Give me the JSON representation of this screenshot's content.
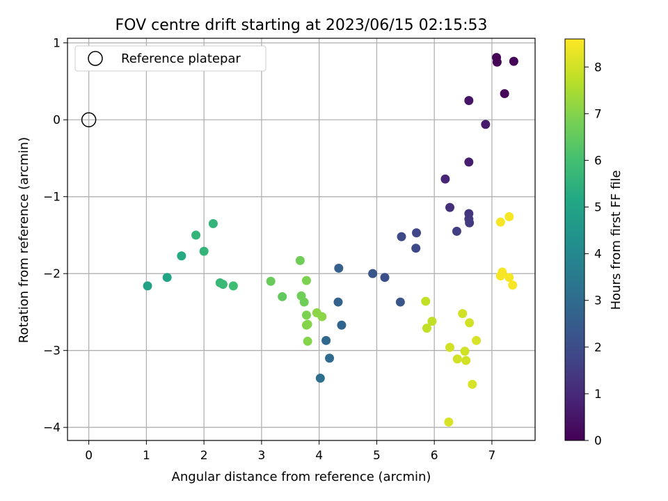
{
  "chart_data": {
    "type": "scatter",
    "title": "FOV centre drift starting at 2023/06/15 02:15:53",
    "xlabel": "Angular distance from reference (arcmin)",
    "ylabel": "Rotation from reference (arcmin)",
    "xlim": [
      -0.37,
      7.75
    ],
    "ylim": [
      -4.17,
      1.06
    ],
    "xticks": [
      "0",
      "1",
      "2",
      "3",
      "4",
      "5",
      "6",
      "7"
    ],
    "yticks": [
      "1",
      "0",
      "−1",
      "−2",
      "−3",
      "−4"
    ],
    "grid": true,
    "legend": {
      "position": "top-left",
      "entries": [
        "Reference platepar"
      ]
    },
    "reference": {
      "x": 0,
      "y": 0
    },
    "colorbar": {
      "label": "Hours from first FF file",
      "range": [
        0,
        8.6
      ],
      "ticks": [
        "0",
        "1",
        "2",
        "3",
        "4",
        "5",
        "6",
        "7",
        "8"
      ],
      "colormap": "viridis"
    },
    "points": [
      [
        7.08,
        0.81,
        0.02
      ],
      [
        7.09,
        0.75,
        0.05
      ],
      [
        7.38,
        0.76,
        0.07
      ],
      [
        7.22,
        0.34,
        0.1
      ],
      [
        6.6,
        0.25,
        0.5
      ],
      [
        6.89,
        -0.06,
        0.6
      ],
      [
        6.6,
        -0.55,
        0.7
      ],
      [
        6.19,
        -0.77,
        0.9
      ],
      [
        6.27,
        -1.14,
        1.2
      ],
      [
        6.6,
        -1.22,
        1.3
      ],
      [
        6.6,
        -1.29,
        1.4
      ],
      [
        6.61,
        -1.34,
        1.5
      ],
      [
        6.39,
        -1.45,
        1.6
      ],
      [
        5.69,
        -1.47,
        1.8
      ],
      [
        5.43,
        -1.52,
        1.9
      ],
      [
        5.68,
        -1.67,
        1.9
      ],
      [
        5.14,
        -2.05,
        2.1
      ],
      [
        4.93,
        -2.0,
        2.3
      ],
      [
        5.41,
        -2.37,
        2.3
      ],
      [
        4.34,
        -1.93,
        2.6
      ],
      [
        4.33,
        -2.37,
        2.7
      ],
      [
        4.39,
        -2.67,
        2.8
      ],
      [
        4.12,
        -2.87,
        2.9
      ],
      [
        4.18,
        -3.1,
        3.0
      ],
      [
        4.02,
        -3.36,
        3.1
      ],
      [
        1.02,
        -2.16,
        4.9
      ],
      [
        1.36,
        -2.05,
        5.0
      ],
      [
        1.61,
        -1.77,
        5.2
      ],
      [
        1.86,
        -1.5,
        5.6
      ],
      [
        2.0,
        -1.71,
        5.6
      ],
      [
        2.16,
        -1.35,
        5.6
      ],
      [
        2.28,
        -2.12,
        5.7
      ],
      [
        2.33,
        -2.14,
        5.8
      ],
      [
        2.51,
        -2.16,
        5.9
      ],
      [
        3.16,
        -2.1,
        6.6
      ],
      [
        3.36,
        -2.3,
        6.5
      ],
      [
        3.67,
        -1.83,
        6.7
      ],
      [
        3.69,
        -2.29,
        6.7
      ],
      [
        3.74,
        -2.37,
        6.7
      ],
      [
        3.78,
        -2.09,
        6.9
      ],
      [
        3.78,
        -2.54,
        6.9
      ],
      [
        3.78,
        -2.67,
        7.0
      ],
      [
        3.8,
        -2.66,
        7.0
      ],
      [
        3.8,
        -2.88,
        7.0
      ],
      [
        3.96,
        -2.51,
        7.1
      ],
      [
        4.05,
        -2.56,
        7.1
      ],
      [
        5.85,
        -2.36,
        7.8
      ],
      [
        5.87,
        -2.71,
        7.8
      ],
      [
        5.96,
        -2.62,
        7.8
      ],
      [
        6.27,
        -2.96,
        8.0
      ],
      [
        6.4,
        -3.11,
        8.0
      ],
      [
        6.49,
        -2.52,
        8.0
      ],
      [
        6.53,
        -3.01,
        8.0
      ],
      [
        6.55,
        -3.13,
        8.0
      ],
      [
        6.61,
        -2.64,
        8.0
      ],
      [
        6.66,
        -3.44,
        8.1
      ],
      [
        6.73,
        -2.87,
        8.1
      ],
      [
        6.25,
        -3.93,
        8.1
      ],
      [
        7.15,
        -1.33,
        8.5
      ],
      [
        7.3,
        -1.26,
        8.5
      ],
      [
        7.18,
        -1.98,
        8.5
      ],
      [
        7.15,
        -2.03,
        8.5
      ],
      [
        7.3,
        -2.05,
        8.5
      ],
      [
        7.36,
        -2.15,
        8.5
      ]
    ]
  }
}
